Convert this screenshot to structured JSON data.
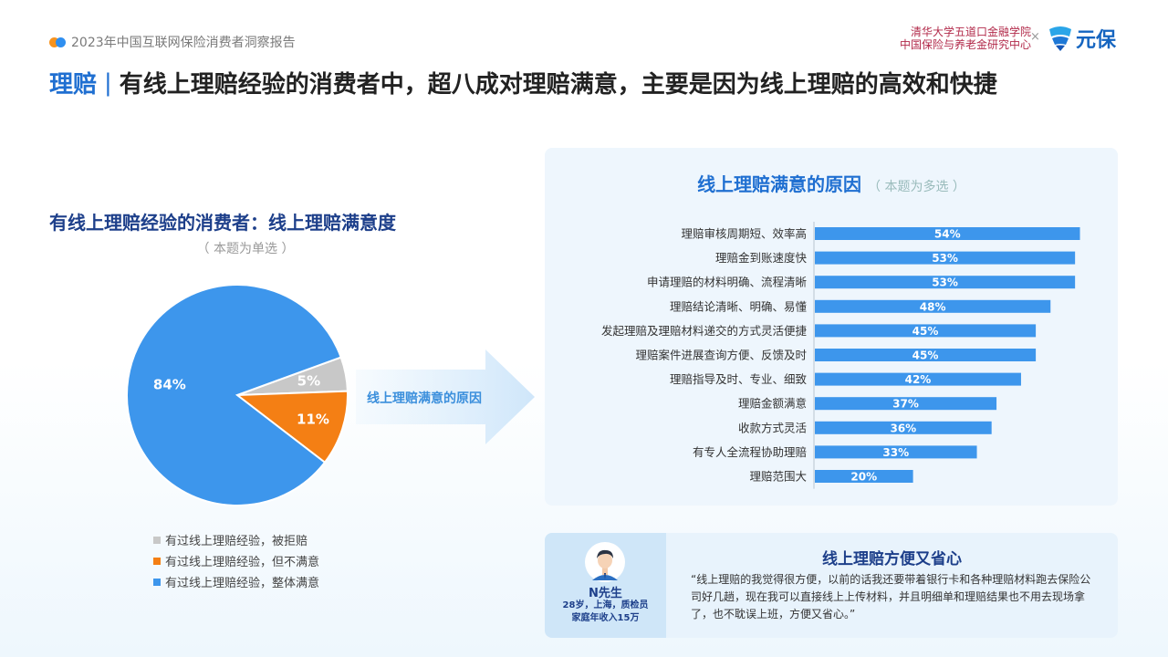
{
  "header": {
    "report_title": "2023年中国互联网保险消费者洞察报告",
    "org_line1": "清华大学五道口金融学院",
    "org_line2": "中国保险与养老金研究中心",
    "separator": "×",
    "logo_text": "元保"
  },
  "headline": {
    "tag": "理赔",
    "separator": "|",
    "text": "有线上理赔经验的消费者中，超八成对理赔满意，主要是因为线上理赔的高效和快捷"
  },
  "left": {
    "title": "有线上理赔经验的消费者：线上理赔满意度",
    "note": "（ 本题为单选 ）"
  },
  "arrow_label": "线上理赔满意的原因",
  "right": {
    "title": "线上理赔满意的原因",
    "note": "（ 本题为多选 ）"
  },
  "colors": {
    "blue": "#3d96ec",
    "orange": "#f47f14",
    "gray": "#c8c8c8",
    "bar": "#3d96ec"
  },
  "chart_data": [
    {
      "type": "pie",
      "title": "有线上理赔经验的消费者：线上理赔满意度",
      "labels": [
        "有过线上理赔经验，整体满意",
        "有过线上理赔经验，但不满意",
        "有过线上理赔经验，被拒赔"
      ],
      "values": [
        84,
        11,
        5
      ],
      "value_labels": [
        "84%",
        "11%",
        "5%"
      ],
      "colors": [
        "#3d96ec",
        "#f47f14",
        "#c8c8c8"
      ],
      "legend_order": [
        "有过线上理赔经验，被拒赔",
        "有过线上理赔经验，但不满意",
        "有过线上理赔经验，整体满意"
      ],
      "legend_colors": [
        "#c8c8c8",
        "#f47f14",
        "#3d96ec"
      ],
      "legend_position": "bottom"
    },
    {
      "type": "bar",
      "orientation": "horizontal",
      "title": "线上理赔满意的原因",
      "categories": [
        "理赔审核周期短、效率高",
        "理赔金到账速度快",
        "申请理赔的材料明确、流程清晰",
        "理赔结论清晰、明确、易懂",
        "发起理赔及理赔材料递交的方式灵活便捷",
        "理赔案件进展查询方便、反馈及时",
        "理赔指导及时、专业、细致",
        "理赔金额满意",
        "收款方式灵活",
        "有专人全流程协助理赔",
        "理赔范围大"
      ],
      "values": [
        54,
        53,
        53,
        48,
        45,
        45,
        42,
        37,
        36,
        33,
        20
      ],
      "value_labels": [
        "54%",
        "53%",
        "53%",
        "48%",
        "45%",
        "45%",
        "42%",
        "37%",
        "36%",
        "33%",
        "20%"
      ],
      "xlim": [
        0,
        100
      ]
    }
  ],
  "quote": {
    "title": "线上理赔方便又省心",
    "name": "N先生",
    "info_line1": "28岁，上海，质检员",
    "info_line2": "家庭年收入15万",
    "text": "“线上理赔的我觉得很方便，以前的话我还要带着银行卡和各种理赔材料跑去保险公司好几趟，现在我可以直接线上上传材料，并且明细单和理赔结果也不用去现场拿了，也不耽误上班，方便又省心。”"
  }
}
